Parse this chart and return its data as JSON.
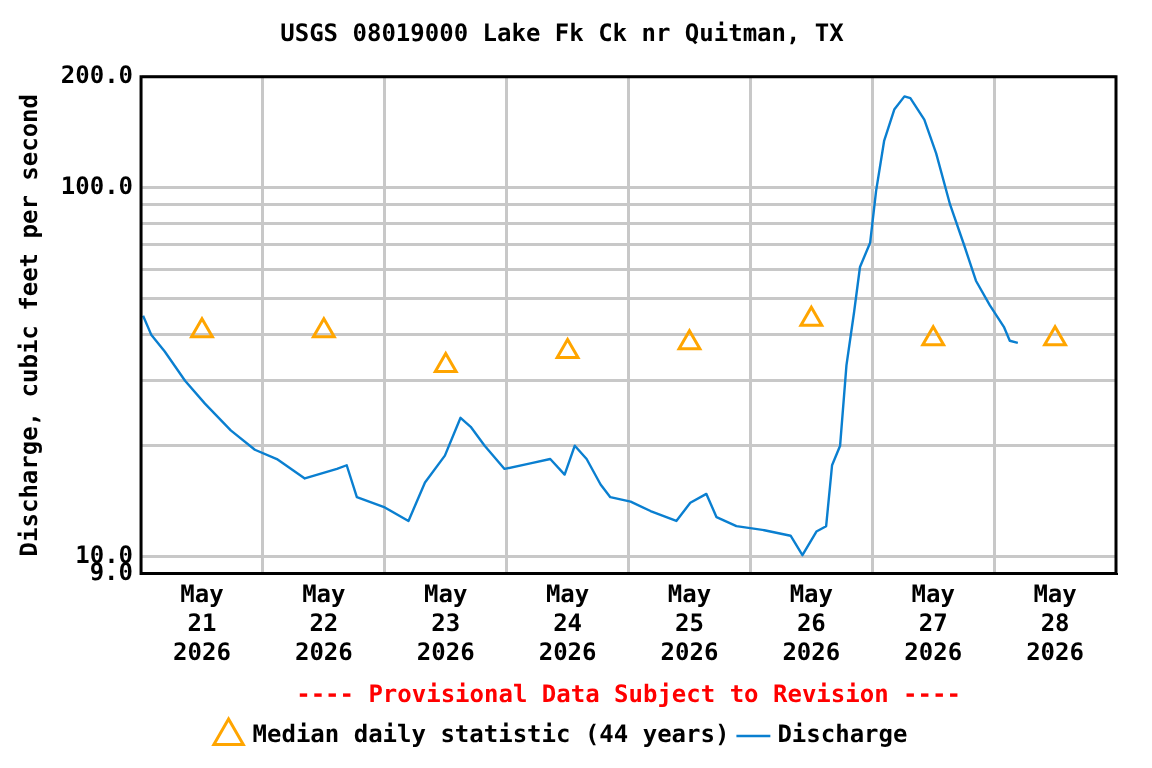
{
  "chart_data": {
    "type": "line",
    "title": "USGS 08019000 Lake Fk Ck nr Quitman, TX",
    "ylabel": "Discharge, cubic feet per second",
    "annotations": [
      "---- Provisional Data Subject to Revision ----"
    ],
    "log": "y",
    "grid": true,
    "legend": "bottom",
    "xlim": [
      "2026-05-21T00:00",
      "2026-05-29T00:00"
    ],
    "xticks": [
      {
        "value": "2026-05-21T12:00",
        "label": "May 21 2026"
      },
      {
        "value": "2026-05-22T00:00",
        "label": null
      },
      {
        "value": "2026-05-22T12:00",
        "label": "May 22 2026"
      },
      {
        "value": "2026-05-23T00:00",
        "label": null
      },
      {
        "value": "2026-05-23T12:00",
        "label": "May 23 2026"
      },
      {
        "value": "2026-05-24T00:00",
        "label": null
      },
      {
        "value": "2026-05-24T12:00",
        "label": "May 24 2026"
      },
      {
        "value": "2026-05-25T00:00",
        "label": null
      },
      {
        "value": "2026-05-25T12:00",
        "label": "May 25 2026"
      },
      {
        "value": "2026-05-26T00:00",
        "label": null
      },
      {
        "value": "2026-05-26T12:00",
        "label": "May 26 2026"
      },
      {
        "value": "2026-05-27T00:00",
        "label": null
      },
      {
        "value": "2026-05-27T12:00",
        "label": "May 27 2026"
      },
      {
        "value": "2026-05-28T00:00",
        "label": null
      },
      {
        "value": "2026-05-28T12:00",
        "label": "May 28 2026"
      }
    ],
    "ylim": [
      9,
      200
    ],
    "yticks": [
      {
        "value": 9,
        "label": "9.0"
      },
      {
        "value": 10,
        "label": "10.0"
      },
      {
        "value": 20,
        "label": null
      },
      {
        "value": 30,
        "label": null
      },
      {
        "value": 40,
        "label": null
      },
      {
        "value": 50,
        "label": null
      },
      {
        "value": 60,
        "label": null
      },
      {
        "value": 70,
        "label": null
      },
      {
        "value": 80,
        "label": null
      },
      {
        "value": 90,
        "label": null
      },
      {
        "value": 100,
        "label": "100.0"
      },
      {
        "value": 200,
        "label": "200.0"
      }
    ],
    "series": [
      {
        "name": "Median daily statistic (44 years)",
        "type": "scatter",
        "marker": "triangle",
        "color": "#ffa500",
        "x": [
          "2026-05-21T12:00",
          "2026-05-22T12:00",
          "2026-05-23T12:00",
          "2026-05-24T12:00",
          "2026-05-25T12:00",
          "2026-05-26T12:00",
          "2026-05-27T12:00",
          "2026-05-28T12:00"
        ],
        "values": [
          41,
          41,
          33,
          36,
          38,
          44,
          39,
          39
        ]
      },
      {
        "name": "Discharge",
        "type": "line",
        "marker": "none",
        "color": "#0a7fd0",
        "x": [
          "2026-05-21T00:24",
          "2026-05-21T02:00",
          "2026-05-21T04:40",
          "2026-05-21T08:40",
          "2026-05-21T12:35",
          "2026-05-21T17:40",
          "2026-05-21T22:25",
          "2026-05-22T02:45",
          "2026-05-22T08:15",
          "2026-05-22T14:35",
          "2026-05-22T16:30",
          "2026-05-22T18:30",
          "2026-05-23T00:00",
          "2026-05-23T04:40",
          "2026-05-23T07:55",
          "2026-05-23T11:50",
          "2026-05-23T14:55",
          "2026-05-23T16:55",
          "2026-05-23T19:40",
          "2026-05-23T23:35",
          "2026-05-24T04:40",
          "2026-05-24T08:35",
          "2026-05-24T11:25",
          "2026-05-24T13:25",
          "2026-05-24T15:45",
          "2026-05-24T18:30",
          "2026-05-24T20:25",
          "2026-05-25T00:25",
          "2026-05-25T04:20",
          "2026-05-25T09:25",
          "2026-05-25T12:10",
          "2026-05-25T15:20",
          "2026-05-25T17:20",
          "2026-05-25T21:15",
          "2026-05-26T02:45",
          "2026-05-26T07:55",
          "2026-05-26T10:15",
          "2026-05-26T13:00",
          "2026-05-26T14:55",
          "2026-05-26T16:05",
          "2026-05-26T17:40",
          "2026-05-26T18:55",
          "2026-05-26T20:25",
          "2026-05-26T21:35",
          "2026-05-26T23:35",
          "2026-05-27T00:45",
          "2026-05-27T02:20",
          "2026-05-27T04:20",
          "2026-05-27T06:20",
          "2026-05-27T07:30",
          "2026-05-27T10:15",
          "2026-05-27T12:35",
          "2026-05-27T15:20",
          "2026-05-27T18:05",
          "2026-05-27T20:25",
          "2026-05-27T23:10",
          "2026-05-28T01:55",
          "2026-05-28T03:05",
          "2026-05-28T04:40"
        ],
        "values": [
          45,
          40,
          36,
          30,
          26,
          22,
          19.5,
          18.4,
          16.3,
          17.3,
          17.7,
          14.5,
          13.6,
          12.5,
          15.9,
          18.8,
          23.8,
          22.5,
          20,
          17.3,
          17.9,
          18.4,
          16.7,
          20,
          18.4,
          15.7,
          14.5,
          14.1,
          13.3,
          12.5,
          14,
          14.8,
          12.8,
          12.1,
          11.8,
          11.4,
          10.1,
          11.7,
          12.1,
          17.7,
          20,
          33,
          46,
          61,
          71,
          98,
          134,
          163,
          177,
          175,
          153,
          124,
          90,
          70,
          56,
          48,
          42,
          38.5,
          38
        ]
      }
    ]
  }
}
